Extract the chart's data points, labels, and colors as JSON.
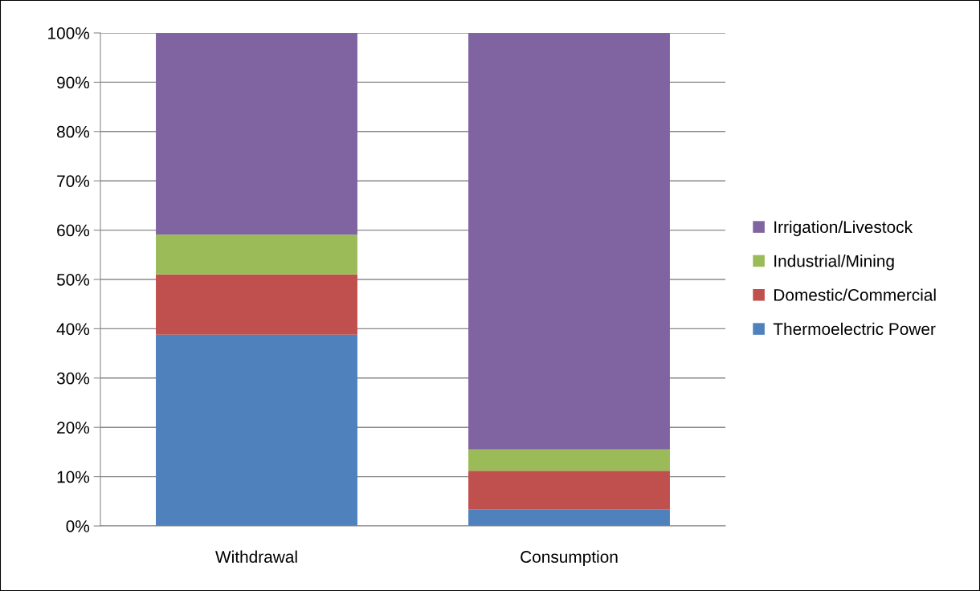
{
  "chart_data": {
    "type": "bar",
    "stacked": true,
    "categories": [
      "Withdrawal",
      "Consumption"
    ],
    "series": [
      {
        "name": "Thermoelectric Power",
        "color": "#4f81bd",
        "values": [
          38.8,
          3.3
        ]
      },
      {
        "name": "Domestic/Commercial",
        "color": "#c0504d",
        "values": [
          12.2,
          7.9
        ]
      },
      {
        "name": "Industrial/Mining",
        "color": "#9bbb59",
        "values": [
          8.1,
          4.3
        ]
      },
      {
        "name": "Irrigation/Livestock",
        "color": "#8064a2",
        "values": [
          40.9,
          84.5
        ]
      }
    ],
    "ylim": [
      0,
      100
    ],
    "yticks": [
      {
        "value": 0,
        "label": "0%"
      },
      {
        "value": 10,
        "label": "10%"
      },
      {
        "value": 20,
        "label": "20%"
      },
      {
        "value": 30,
        "label": "30%"
      },
      {
        "value": 40,
        "label": "40%"
      },
      {
        "value": 50,
        "label": "50%"
      },
      {
        "value": 60,
        "label": "60%"
      },
      {
        "value": 70,
        "label": "70%"
      },
      {
        "value": 80,
        "label": "80%"
      },
      {
        "value": 90,
        "label": "90%"
      },
      {
        "value": 100,
        "label": "100%"
      }
    ],
    "grid": "y",
    "legend": "right"
  }
}
